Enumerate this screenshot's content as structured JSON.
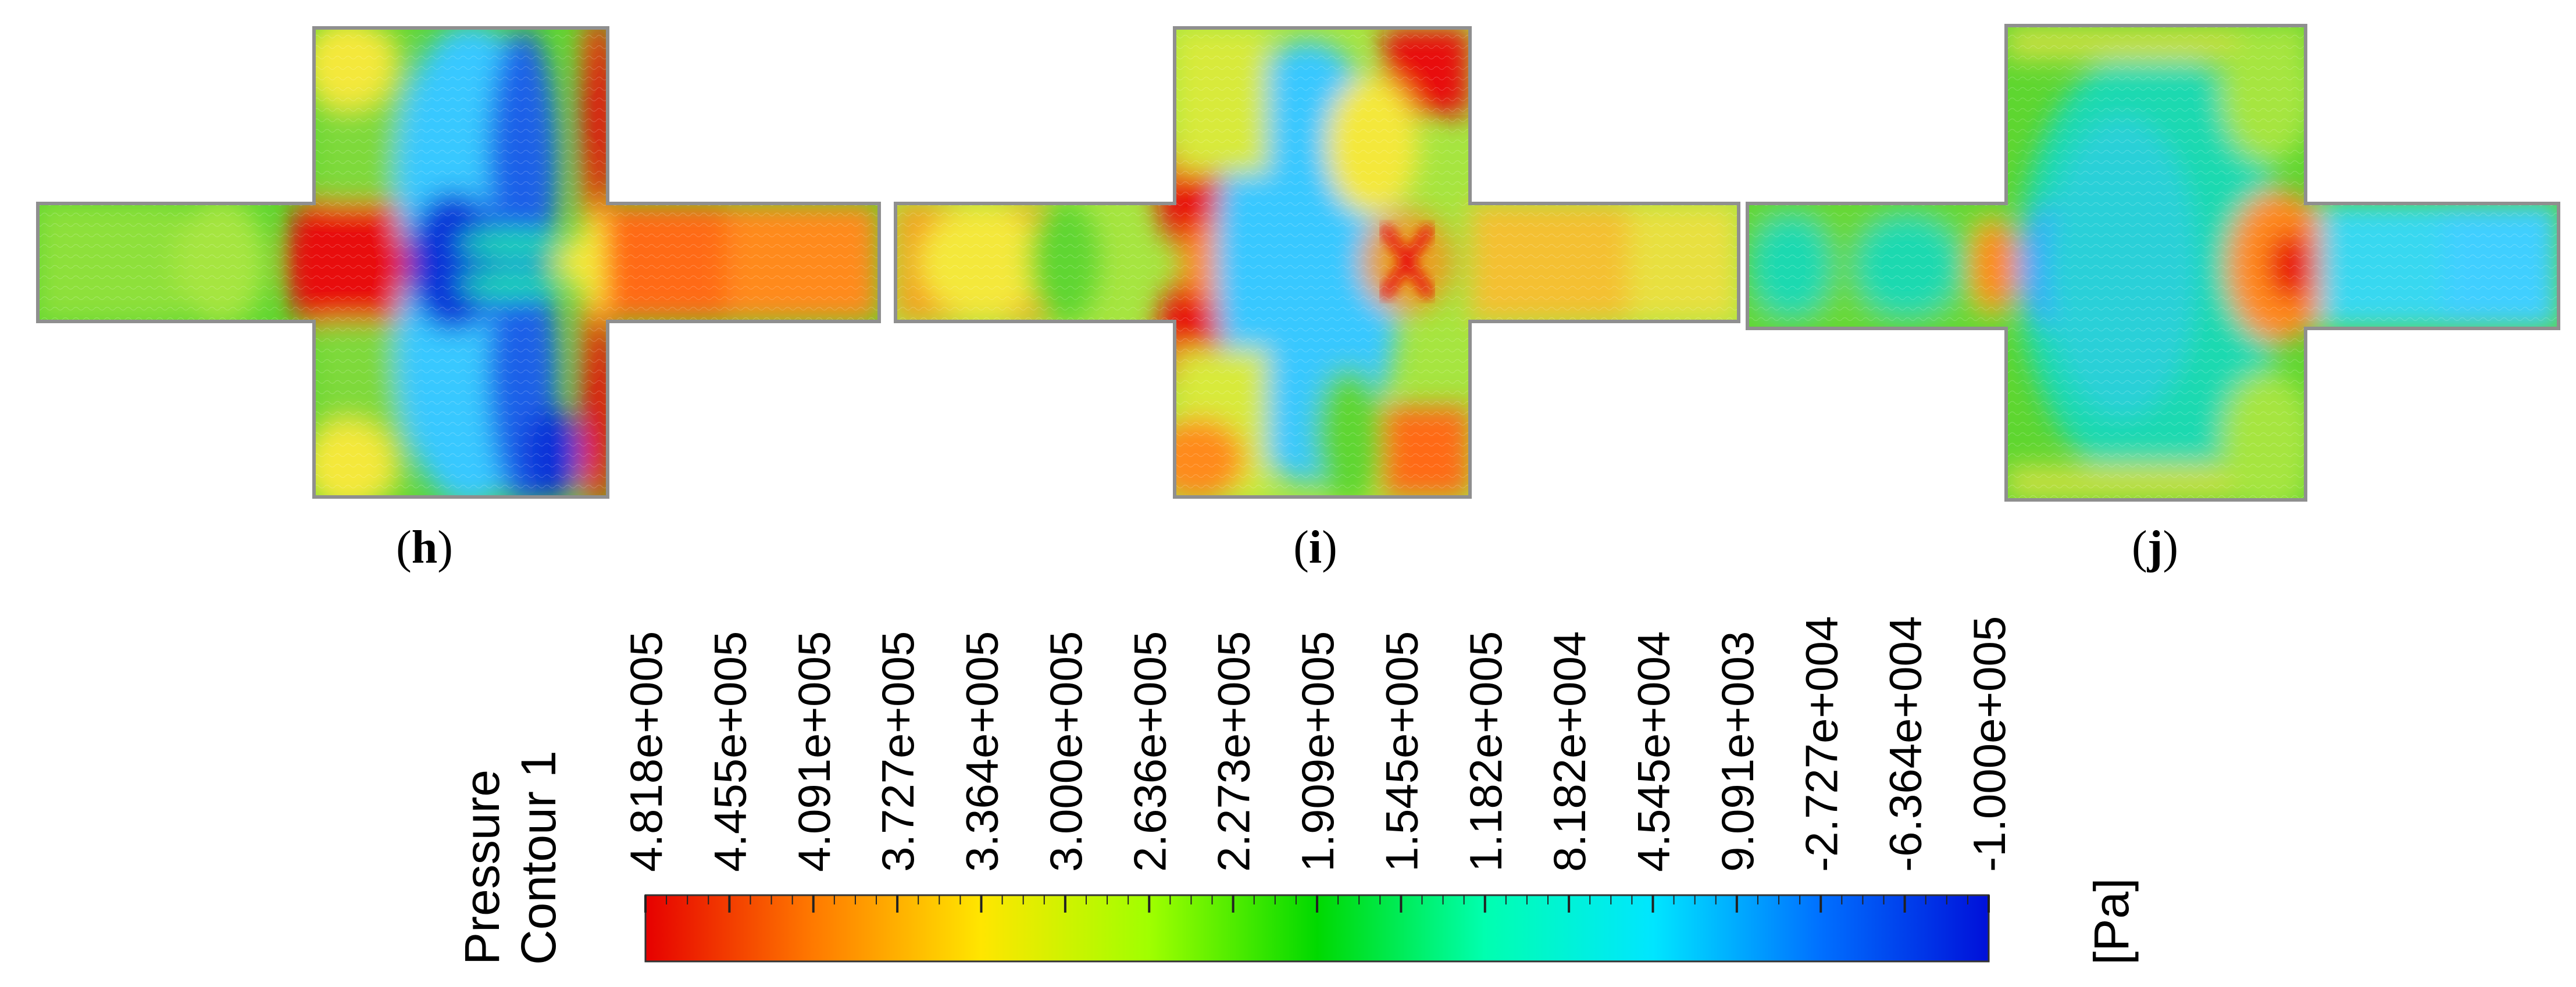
{
  "panels": [
    {
      "id": "h",
      "label_open": "(",
      "label_letter": "h",
      "label_close": ")"
    },
    {
      "id": "i",
      "label_open": "(",
      "label_letter": "i",
      "label_close": ")"
    },
    {
      "id": "j",
      "label_open": "(",
      "label_letter": "j",
      "label_close": ")"
    }
  ],
  "legend": {
    "title_line1": "Pressure",
    "title_line2": "Contour 1",
    "unit": "[Pa]",
    "ticks": [
      "4.818e+005",
      "4.455e+005",
      "4.091e+005",
      "3.727e+005",
      "3.364e+005",
      "3.000e+005",
      "2.636e+005",
      "2.273e+005",
      "1.909e+005",
      "1.545e+005",
      "1.182e+005",
      "8.182e+004",
      "4.545e+004",
      "9.091e+003",
      "-2.727e+004",
      "-6.364e+004",
      "-1.000e+005"
    ],
    "colors": [
      "#e60000",
      "#ff7a00",
      "#ffe600",
      "#a0ff00",
      "#00d900",
      "#00ffb0",
      "#00e6ff",
      "#0070ff",
      "#0010d9"
    ]
  },
  "colors": {
    "red": "#e81010",
    "orange": "#ff8a1a",
    "yellow": "#f4e83a",
    "green": "#5ed630",
    "teal": "#1ed9b0",
    "cyan": "#38c8ff",
    "blue": "#1030d8",
    "wall": "#8f8f8f"
  }
}
